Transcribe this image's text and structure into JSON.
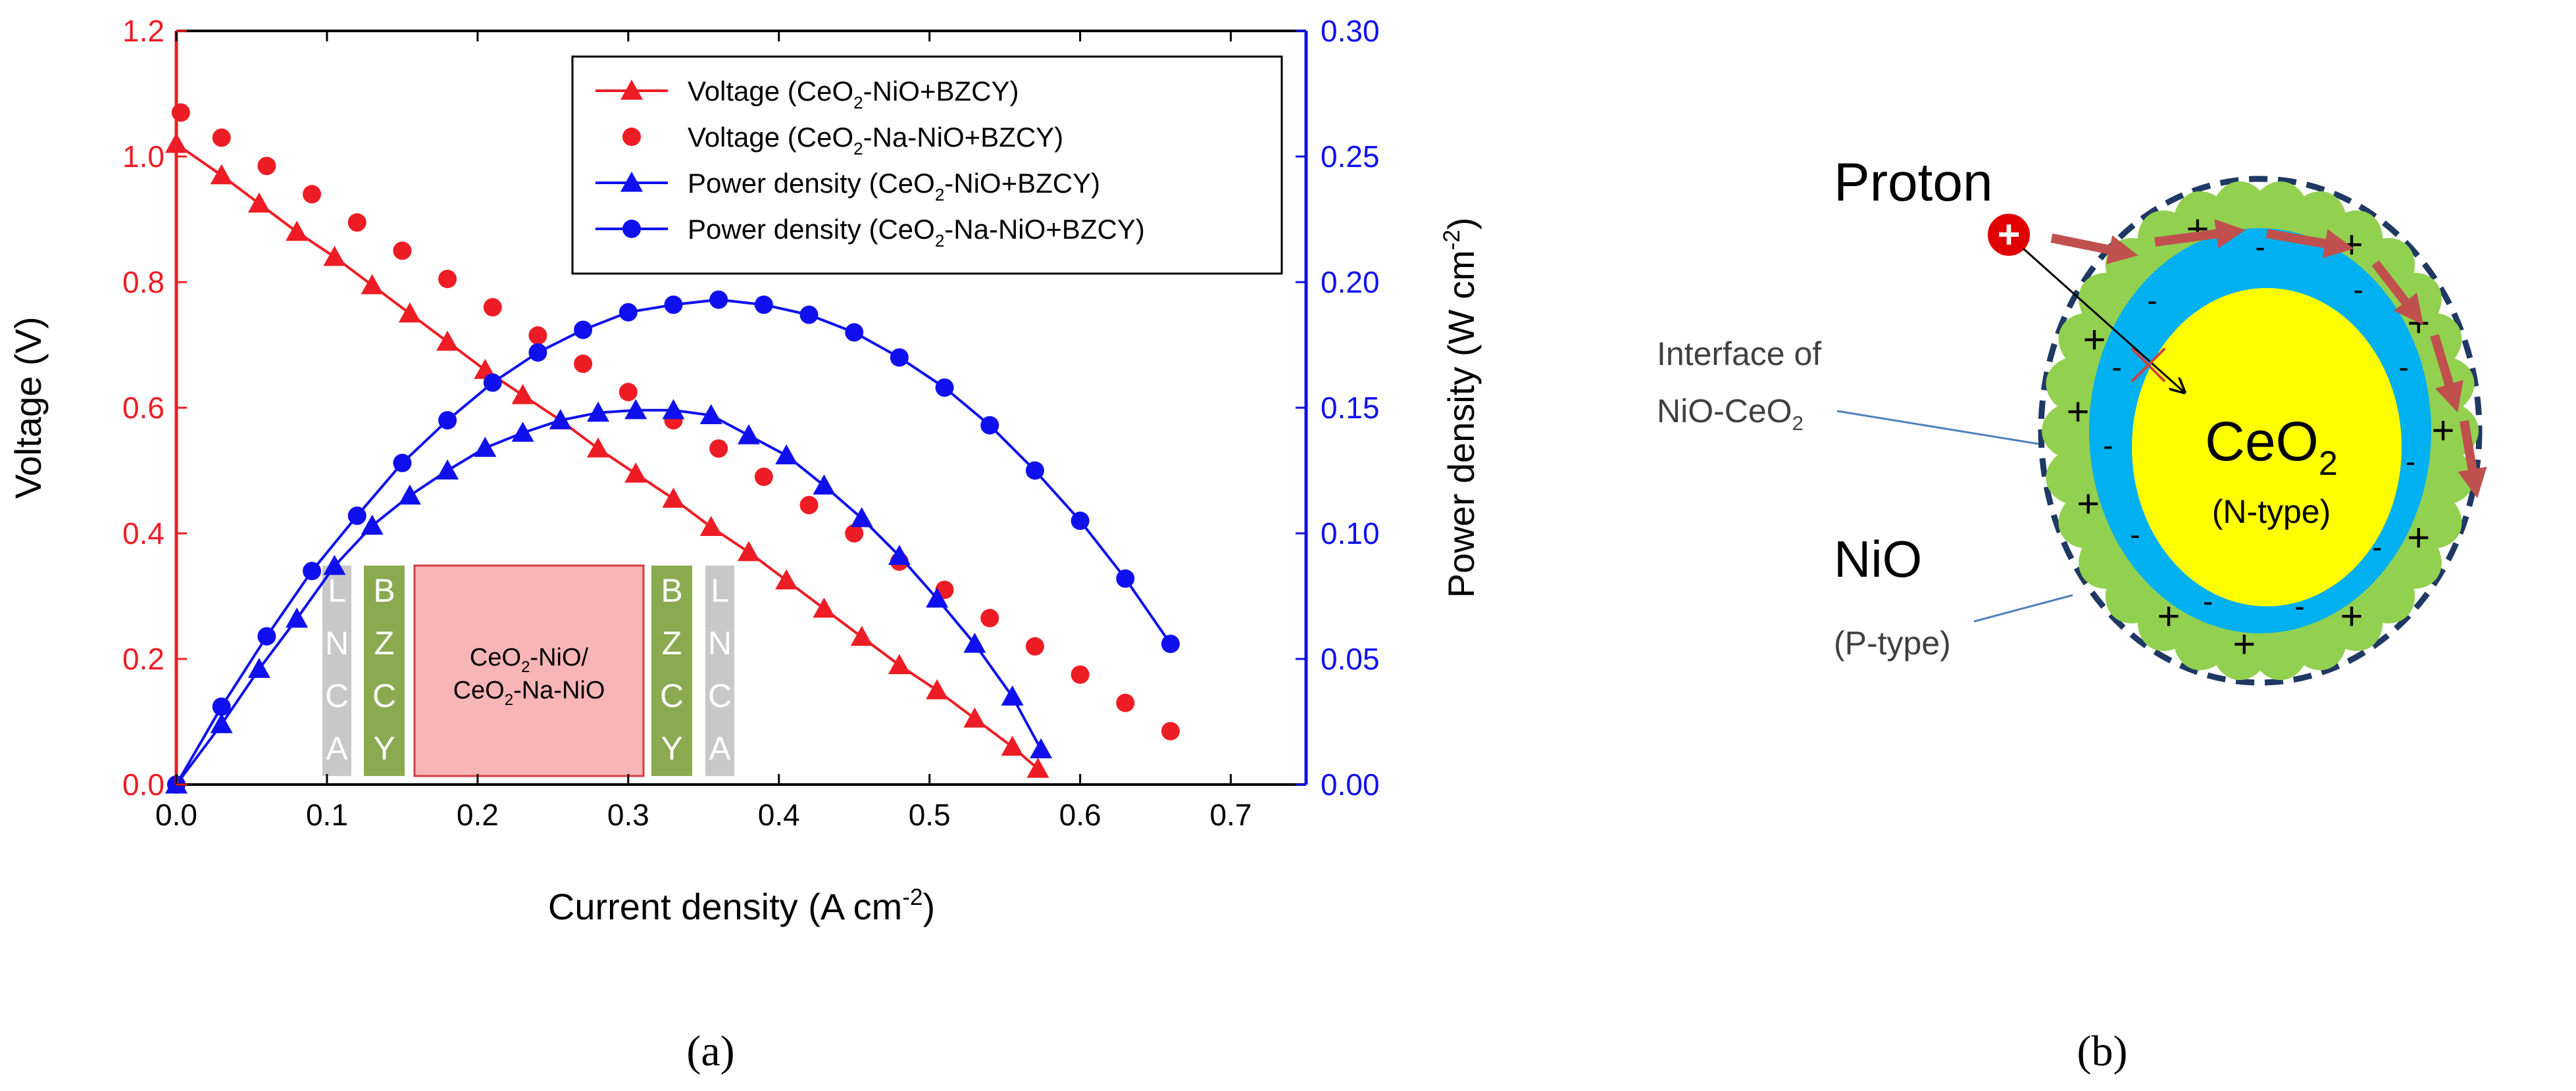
{
  "colors": {
    "red": "#ee1c24",
    "blue": "#1010ee",
    "cell_fill": "#f7b5b5",
    "bzcy_green": "#8aaa50",
    "lnca_gray": "#c8c8c8",
    "ceo2_yellow": "#ffff00",
    "shell_blue": "#00b0f0",
    "nio_green": "#92d050",
    "arrow_brown": "#c0504d",
    "dash_navy": "#1f3864"
  },
  "panel_a": {
    "caption": "(a)",
    "cell_inset": {
      "left_outer": [
        "L",
        "N",
        "C",
        "A"
      ],
      "left_inner": [
        "B",
        "Z",
        "C",
        "Y"
      ],
      "center": [
        "CeO",
        "2",
        "-NiO/",
        "CeO",
        "2",
        "-Na-NiO"
      ],
      "right_inner": [
        "B",
        "Z",
        "C",
        "Y"
      ],
      "right_outer": [
        "L",
        "N",
        "C",
        "A"
      ]
    }
  },
  "panel_b": {
    "caption": "(b)",
    "proton_label": "Proton",
    "plus_sign": "+",
    "minus_sign": "-",
    "interface_label": [
      "Interface of",
      "NiO-CeO",
      "2"
    ],
    "core_label": [
      "CeO",
      "2"
    ],
    "core_type": "(N-type)",
    "nio_label": "NiO",
    "nio_type": "(P-type)"
  },
  "chart_data": {
    "type": "line",
    "xlabel": "Current density (A cm",
    "xlabel_sup": "-2",
    "xlabel_close": ")",
    "ylabel_left": "Voltage (V)",
    "ylabel_right": "Power density (W cm",
    "ylabel_right_sup": "-2",
    "ylabel_right_close": ")",
    "xlim": [
      0,
      0.75
    ],
    "ylim_left": [
      0,
      1.2
    ],
    "ylim_right": [
      0,
      0.3
    ],
    "x_ticks": [
      "0.0",
      "0.1",
      "0.2",
      "0.3",
      "0.4",
      "0.5",
      "0.6",
      "0.7"
    ],
    "y_left_ticks": [
      "0.0",
      "0.2",
      "0.4",
      "0.6",
      "0.8",
      "1.0",
      "1.2"
    ],
    "y_right_ticks": [
      "0.00",
      "0.05",
      "0.10",
      "0.15",
      "0.20",
      "0.25",
      "0.30"
    ],
    "legend_position": "top-right",
    "series": [
      {
        "name": "Voltage (CeO2-NiO+BZCY)",
        "legend": [
          "Voltage (CeO",
          "2",
          "-NiO+BZCY)"
        ],
        "axis": "left",
        "color": "red",
        "marker": "triangle",
        "line": true,
        "x": [
          0.0,
          0.03,
          0.055,
          0.08,
          0.105,
          0.13,
          0.155,
          0.18,
          0.205,
          0.23,
          0.255,
          0.28,
          0.305,
          0.33,
          0.355,
          0.38,
          0.405,
          0.43,
          0.455,
          0.48,
          0.505,
          0.53,
          0.555,
          0.572
        ],
        "y": [
          1.02,
          0.97,
          0.925,
          0.88,
          0.84,
          0.795,
          0.75,
          0.705,
          0.66,
          0.62,
          0.58,
          0.535,
          0.495,
          0.455,
          0.41,
          0.37,
          0.325,
          0.28,
          0.235,
          0.19,
          0.15,
          0.105,
          0.06,
          0.025
        ]
      },
      {
        "name": "Voltage (CeO2-Na-NiO+BZCY)",
        "legend": [
          "Voltage (CeO",
          "2",
          "-Na-NiO+BZCY)"
        ],
        "axis": "left",
        "color": "red",
        "marker": "circle",
        "line": false,
        "x": [
          0.003,
          0.03,
          0.06,
          0.09,
          0.12,
          0.15,
          0.18,
          0.21,
          0.24,
          0.27,
          0.3,
          0.33,
          0.36,
          0.39,
          0.42,
          0.45,
          0.48,
          0.51,
          0.54,
          0.57,
          0.6,
          0.63,
          0.66
        ],
        "y": [
          1.07,
          1.03,
          0.985,
          0.94,
          0.895,
          0.85,
          0.805,
          0.76,
          0.715,
          0.67,
          0.625,
          0.58,
          0.535,
          0.49,
          0.445,
          0.4,
          0.355,
          0.31,
          0.265,
          0.22,
          0.175,
          0.13,
          0.085
        ]
      },
      {
        "name": "Power density (CeO2-NiO+BZCY)",
        "legend": [
          "Power density  (CeO",
          "2",
          "-NiO+BZCY)"
        ],
        "axis": "right",
        "color": "blue",
        "marker": "triangle",
        "line": true,
        "x": [
          0.0,
          0.03,
          0.055,
          0.08,
          0.105,
          0.13,
          0.155,
          0.18,
          0.205,
          0.23,
          0.255,
          0.28,
          0.305,
          0.33,
          0.355,
          0.38,
          0.405,
          0.43,
          0.455,
          0.48,
          0.505,
          0.53,
          0.555,
          0.574
        ],
        "y": [
          0.0,
          0.024,
          0.046,
          0.066,
          0.087,
          0.103,
          0.115,
          0.125,
          0.134,
          0.14,
          0.145,
          0.148,
          0.149,
          0.149,
          0.147,
          0.139,
          0.131,
          0.119,
          0.106,
          0.091,
          0.074,
          0.056,
          0.035,
          0.014
        ]
      },
      {
        "name": "Power density (CeO2-Na-NiO+BZCY)",
        "legend": [
          "Power density (CeO",
          "2",
          "-Na-NiO+BZCY)"
        ],
        "axis": "right",
        "color": "blue",
        "marker": "circle",
        "line": true,
        "x": [
          0.0,
          0.03,
          0.06,
          0.09,
          0.12,
          0.15,
          0.18,
          0.21,
          0.24,
          0.27,
          0.3,
          0.33,
          0.36,
          0.39,
          0.42,
          0.45,
          0.48,
          0.51,
          0.54,
          0.57,
          0.6,
          0.63,
          0.66
        ],
        "y": [
          0.0,
          0.031,
          0.059,
          0.085,
          0.107,
          0.128,
          0.145,
          0.16,
          0.172,
          0.181,
          0.188,
          0.191,
          0.193,
          0.191,
          0.187,
          0.18,
          0.17,
          0.158,
          0.143,
          0.125,
          0.105,
          0.082,
          0.056
        ]
      }
    ]
  }
}
